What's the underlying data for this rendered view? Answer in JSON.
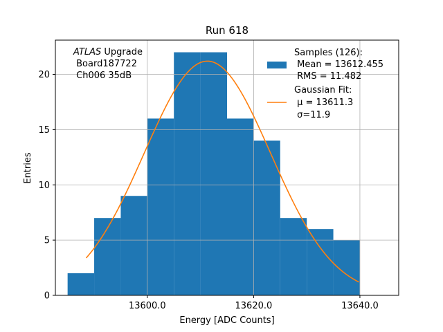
{
  "chart_data": {
    "type": "bar",
    "title": "Run 618",
    "xlabel": "Energy [ADC Counts]",
    "ylabel": "Entries",
    "xlim": [
      13582.7,
      13647.3
    ],
    "ylim": [
      0,
      23.1
    ],
    "x_ticks": [
      13600.0,
      13620.0,
      13640.0
    ],
    "x_tick_labels": [
      "13600.0",
      "13620.0",
      "13640.0"
    ],
    "y_ticks": [
      0,
      5,
      10,
      15,
      20
    ],
    "y_tick_labels": [
      "0",
      "5",
      "10",
      "15",
      "20"
    ],
    "grid": true,
    "bins": [
      {
        "x0": 13585,
        "x1": 13590,
        "count": 2
      },
      {
        "x0": 13590,
        "x1": 13595,
        "count": 7
      },
      {
        "x0": 13595,
        "x1": 13600,
        "count": 9
      },
      {
        "x0": 13600,
        "x1": 13605,
        "count": 16
      },
      {
        "x0": 13605,
        "x1": 13610,
        "count": 22
      },
      {
        "x0": 13610,
        "x1": 13615,
        "count": 22
      },
      {
        "x0": 13615,
        "x1": 13620,
        "count": 16
      },
      {
        "x0": 13620,
        "x1": 13625,
        "count": 14
      },
      {
        "x0": 13625,
        "x1": 13630,
        "count": 7
      },
      {
        "x0": 13630,
        "x1": 13635,
        "count": 6
      },
      {
        "x0": 13635,
        "x1": 13640,
        "count": 5
      }
    ],
    "fit": {
      "type": "gaussian",
      "mu": 13611.3,
      "sigma": 11.9,
      "amplitude": 21.2,
      "x_range": [
        13588.5,
        13639.8
      ]
    },
    "annotation": {
      "line1_italic": "ATLAS",
      "line1_rest": " Upgrade",
      "line2": " Board187722",
      "line3": " Ch006 35dB"
    },
    "legend": {
      "position": "top-right",
      "entries": [
        {
          "lines": [
            "Samples (126):",
            " Mean = 13612.455",
            " RMS = 11.482"
          ],
          "color": "#1f77b4",
          "marker": "patch"
        },
        {
          "lines": [
            "Gaussian Fit:",
            " μ = 13611.3",
            " σ=11.9"
          ],
          "color": "#ff7f0e",
          "marker": "line"
        }
      ]
    },
    "colors": {
      "bars": "#1f77b4",
      "fit": "#ff7f0e",
      "grid": "#b0b0b0"
    }
  }
}
